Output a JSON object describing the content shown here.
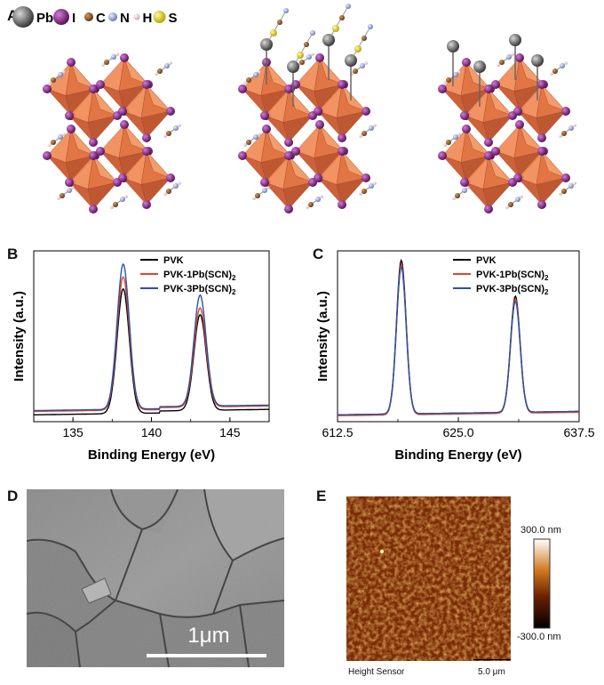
{
  "panels": {
    "a": {
      "label": "A"
    },
    "b": {
      "label": "B"
    },
    "c": {
      "label": "C"
    },
    "d": {
      "label": "D"
    },
    "e": {
      "label": "E"
    }
  },
  "legend_atoms": [
    {
      "symbol": "Pb",
      "color": "#6e6e6e"
    },
    {
      "symbol": "I",
      "color": "#8a2a8c"
    },
    {
      "symbol": "C",
      "color": "#8a5a2b"
    },
    {
      "symbol": "N",
      "color": "#9aa6d6"
    },
    {
      "symbol": "H",
      "color": "#e8c8c8"
    },
    {
      "symbol": "S",
      "color": "#e6d82a"
    }
  ],
  "chart_data": [
    {
      "panel": "B",
      "type": "line",
      "xlabel": "Binding Energy (eV)",
      "ylabel": "Intensity (a.u.)",
      "xlim": [
        132.5,
        147.5
      ],
      "x_ticks": [
        "135",
        "140",
        "145"
      ],
      "x_tick_values": [
        135,
        140,
        145
      ],
      "peaks_eV": [
        138.2,
        143.1
      ],
      "series": [
        {
          "name": "PVK",
          "color": "#000000",
          "peak_heights": [
            0.73,
            0.56
          ],
          "baseline": 0.04
        },
        {
          "name": "PVK-1Pb(SCN)2",
          "color": "#e8412b",
          "peak_heights": [
            0.78,
            0.58
          ],
          "baseline": 0.06
        },
        {
          "name": "PVK-3Pb(SCN)2",
          "color": "#2455a6",
          "peak_heights": [
            0.85,
            0.65
          ],
          "baseline": 0.065
        }
      ],
      "legend": [
        {
          "name": "PVK",
          "base": "PVK",
          "sub": ""
        },
        {
          "name": "PVK-1Pb(SCN)2",
          "base": "PVK-1Pb(SCN)",
          "sub": "2"
        },
        {
          "name": "PVK-3Pb(SCN)2",
          "base": "PVK-3Pb(SCN)",
          "sub": "2"
        }
      ]
    },
    {
      "panel": "C",
      "type": "line",
      "xlabel": "Binding Energy (eV)",
      "ylabel": "Intensity (a.u.)",
      "xlim": [
        612.5,
        637.5
      ],
      "x_ticks": [
        "612.5",
        "625.0",
        "637.5"
      ],
      "x_tick_values": [
        612.5,
        625.0,
        637.5
      ],
      "peaks_eV": [
        619.1,
        630.9
      ],
      "series": [
        {
          "name": "PVK",
          "color": "#000000",
          "peak_heights": [
            0.9,
            0.68
          ],
          "baseline": 0.04
        },
        {
          "name": "PVK-1Pb(SCN)2",
          "color": "#e8412b",
          "peak_heights": [
            0.88,
            0.67
          ],
          "baseline": 0.035
        },
        {
          "name": "PVK-3Pb(SCN)2",
          "color": "#2455a6",
          "peak_heights": [
            0.86,
            0.65
          ],
          "baseline": 0.04
        }
      ],
      "legend": [
        {
          "name": "PVK",
          "base": "PVK",
          "sub": ""
        },
        {
          "name": "PVK-1Pb(SCN)2",
          "base": "PVK-1Pb(SCN)",
          "sub": "2"
        },
        {
          "name": "PVK-3Pb(SCN)2",
          "base": "PVK-3Pb(SCN)",
          "sub": "2"
        }
      ]
    }
  ],
  "sem": {
    "scale_label": "1μm"
  },
  "afm": {
    "colorbar_max": "300.0 nm",
    "colorbar_min": "-300.0 nm",
    "sensor_label": "Height Sensor",
    "scale_label": "5.0 μm"
  }
}
